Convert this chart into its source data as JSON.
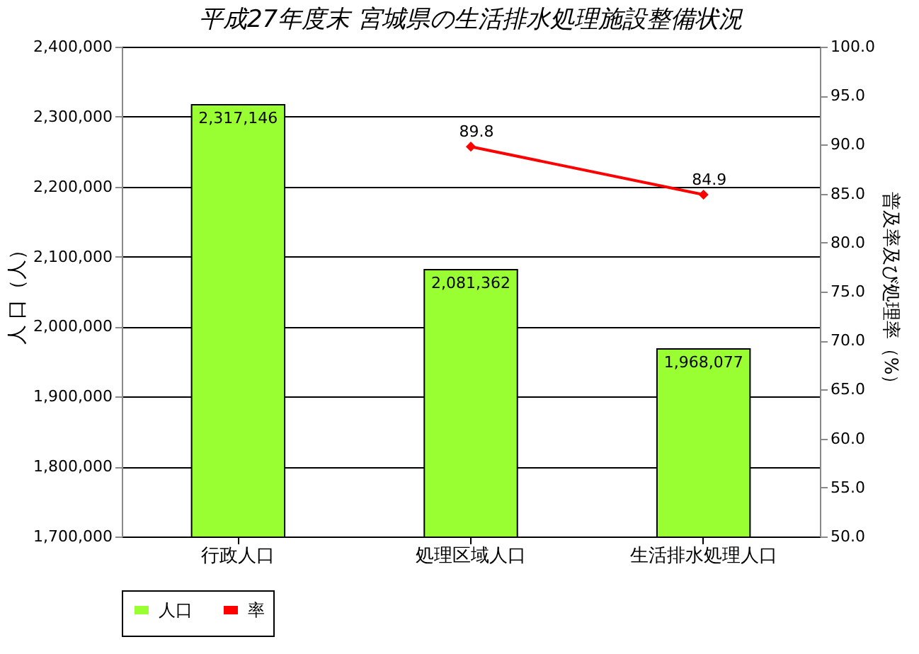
{
  "chart_data": {
    "type": "bar",
    "title": "平成27年度末 宮城県の生活排水処理施設整備状況",
    "ylabel": "人 口（人）",
    "y2label": "普及率及び処理率（%）",
    "categories": [
      "行政人口",
      "処理区域人口",
      "生活排水処理人口"
    ],
    "series": [
      {
        "name": "人口",
        "color": "#99ff33",
        "values": [
          2317146,
          2081362,
          1968077
        ],
        "value_labels": [
          "2,317,146",
          "2,081,362",
          "1,968,077"
        ]
      },
      {
        "name": "率",
        "type": "line",
        "axis": "y2",
        "color": "#ff0000",
        "marker": "diamond",
        "line_style": "solid",
        "values": [
          null,
          89.8,
          84.9
        ],
        "value_labels": [
          null,
          "89.8",
          "84.9"
        ]
      }
    ],
    "ylim": [
      1700000,
      2400000
    ],
    "yticks": [
      {
        "value": 1700000,
        "label": "1,700,000"
      },
      {
        "value": 1800000,
        "label": "1,800,000"
      },
      {
        "value": 1900000,
        "label": "1,900,000"
      },
      {
        "value": 2000000,
        "label": "2,000,000"
      },
      {
        "value": 2100000,
        "label": "2,100,000"
      },
      {
        "value": 2200000,
        "label": "2,200,000"
      },
      {
        "value": 2300000,
        "label": "2,300,000"
      },
      {
        "value": 2400000,
        "label": "2,400,000"
      }
    ],
    "y2lim": [
      50,
      100
    ],
    "y2ticks": [
      {
        "value": 50,
        "label": "50.0"
      },
      {
        "value": 55,
        "label": "55.0"
      },
      {
        "value": 60,
        "label": "60.0"
      },
      {
        "value": 65,
        "label": "65.0"
      },
      {
        "value": 70,
        "label": "70.0"
      },
      {
        "value": 75,
        "label": "75.0"
      },
      {
        "value": 80,
        "label": "80.0"
      },
      {
        "value": 85,
        "label": "85.0"
      },
      {
        "value": 90,
        "label": "90.0"
      },
      {
        "value": 95,
        "label": "95.0"
      },
      {
        "value": 100,
        "label": "100.0"
      }
    ],
    "grid": "y",
    "legend": "bottom"
  }
}
